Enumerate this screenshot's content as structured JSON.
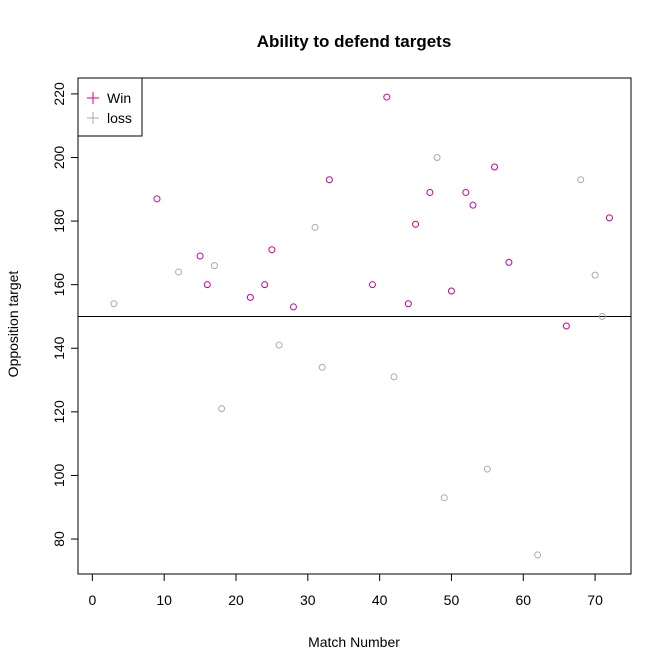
{
  "chart_data": {
    "type": "scatter",
    "title": "Ability to defend targets",
    "xlabel": "Match Number",
    "ylabel": "Opposition target",
    "xlim": [
      -2,
      75
    ],
    "ylim": [
      69,
      225
    ],
    "x_ticks": [
      0,
      10,
      20,
      30,
      40,
      50,
      60,
      70
    ],
    "y_ticks": [
      80,
      100,
      120,
      140,
      160,
      180,
      200,
      220
    ],
    "reference_line": {
      "orientation": "horizontal",
      "y": 150
    },
    "grid": false,
    "legend_position": "top-left",
    "series": [
      {
        "name": "Win",
        "color": "#cc0099",
        "marker": "open-circle",
        "points": [
          {
            "x": 9,
            "y": 187
          },
          {
            "x": 15,
            "y": 169
          },
          {
            "x": 16,
            "y": 160
          },
          {
            "x": 22,
            "y": 156
          },
          {
            "x": 24,
            "y": 160
          },
          {
            "x": 25,
            "y": 171
          },
          {
            "x": 28,
            "y": 153
          },
          {
            "x": 33,
            "y": 193
          },
          {
            "x": 39,
            "y": 160
          },
          {
            "x": 41,
            "y": 219
          },
          {
            "x": 44,
            "y": 154
          },
          {
            "x": 45,
            "y": 179
          },
          {
            "x": 47,
            "y": 189
          },
          {
            "x": 50,
            "y": 158
          },
          {
            "x": 52,
            "y": 189
          },
          {
            "x": 53,
            "y": 185
          },
          {
            "x": 56,
            "y": 197
          },
          {
            "x": 58,
            "y": 167
          },
          {
            "x": 66,
            "y": 147
          },
          {
            "x": 72,
            "y": 181
          }
        ]
      },
      {
        "name": "loss",
        "color": "#aaaaaa",
        "marker": "open-circle",
        "points": [
          {
            "x": 3,
            "y": 154
          },
          {
            "x": 12,
            "y": 164
          },
          {
            "x": 17,
            "y": 166
          },
          {
            "x": 18,
            "y": 121
          },
          {
            "x": 26,
            "y": 141
          },
          {
            "x": 31,
            "y": 178
          },
          {
            "x": 32,
            "y": 134
          },
          {
            "x": 42,
            "y": 131
          },
          {
            "x": 48,
            "y": 200
          },
          {
            "x": 49,
            "y": 93
          },
          {
            "x": 55,
            "y": 102
          },
          {
            "x": 62,
            "y": 75
          },
          {
            "x": 68,
            "y": 193
          },
          {
            "x": 70,
            "y": 163
          },
          {
            "x": 71,
            "y": 150
          }
        ]
      }
    ]
  }
}
